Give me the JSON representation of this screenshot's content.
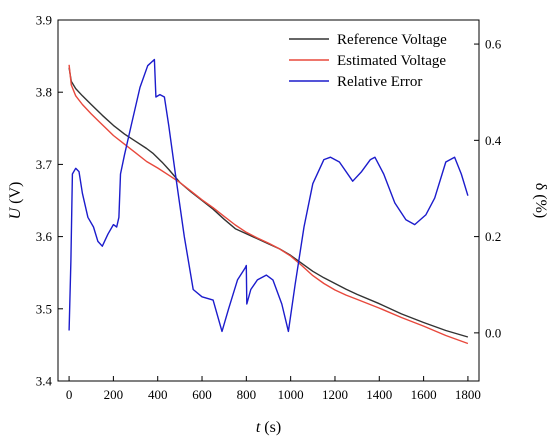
{
  "chart_data": {
    "type": "line",
    "xlabel_main": "t",
    "xlabel_unit": " (s)",
    "ylabel_left_main": "U",
    "ylabel_left_unit": " (V)",
    "ylabel_right": "δ (%)",
    "xlim": [
      -50,
      1850
    ],
    "ylim_left": [
      3.4,
      3.9
    ],
    "ylim_right": [
      -0.1,
      0.65
    ],
    "x_ticks": [
      0,
      200,
      400,
      600,
      800,
      1000,
      1200,
      1400,
      1600,
      1800
    ],
    "y_left_ticks": [
      3.4,
      3.5,
      3.6,
      3.7,
      3.8,
      3.9
    ],
    "y_left_tick_labels": [
      "3.4",
      "3.5",
      "3.6",
      "3.7",
      "3.8",
      "3.9"
    ],
    "y_right_ticks": [
      0.0,
      0.2,
      0.4,
      0.6
    ],
    "y_right_tick_labels": [
      "0.0",
      "0.2",
      "0.4",
      "0.6"
    ],
    "legend_position": "top-right",
    "grid": false,
    "series": [
      {
        "name": "Reference Voltage",
        "axis": "left",
        "color": "#333333",
        "points": [
          [
            0,
            3.834
          ],
          [
            10,
            3.815
          ],
          [
            30,
            3.805
          ],
          [
            60,
            3.795
          ],
          [
            100,
            3.783
          ],
          [
            150,
            3.768
          ],
          [
            200,
            3.754
          ],
          [
            250,
            3.742
          ],
          [
            300,
            3.732
          ],
          [
            350,
            3.722
          ],
          [
            380,
            3.715
          ],
          [
            420,
            3.703
          ],
          [
            450,
            3.693
          ],
          [
            500,
            3.675
          ],
          [
            550,
            3.662
          ],
          [
            600,
            3.65
          ],
          [
            650,
            3.638
          ],
          [
            700,
            3.624
          ],
          [
            750,
            3.611
          ],
          [
            800,
            3.604
          ],
          [
            850,
            3.597
          ],
          [
            900,
            3.59
          ],
          [
            950,
            3.583
          ],
          [
            1000,
            3.574
          ],
          [
            1050,
            3.563
          ],
          [
            1100,
            3.552
          ],
          [
            1150,
            3.543
          ],
          [
            1200,
            3.535
          ],
          [
            1250,
            3.527
          ],
          [
            1300,
            3.52
          ],
          [
            1400,
            3.507
          ],
          [
            1500,
            3.493
          ],
          [
            1600,
            3.481
          ],
          [
            1700,
            3.47
          ],
          [
            1800,
            3.461
          ]
        ]
      },
      {
        "name": "Estimated Voltage",
        "axis": "left",
        "color": "#e8483c",
        "points": [
          [
            0,
            3.838
          ],
          [
            10,
            3.81
          ],
          [
            30,
            3.795
          ],
          [
            60,
            3.783
          ],
          [
            100,
            3.77
          ],
          [
            150,
            3.755
          ],
          [
            200,
            3.74
          ],
          [
            250,
            3.728
          ],
          [
            300,
            3.716
          ],
          [
            350,
            3.704
          ],
          [
            400,
            3.695
          ],
          [
            450,
            3.685
          ],
          [
            500,
            3.675
          ],
          [
            550,
            3.663
          ],
          [
            600,
            3.651
          ],
          [
            650,
            3.64
          ],
          [
            700,
            3.628
          ],
          [
            750,
            3.616
          ],
          [
            800,
            3.606
          ],
          [
            850,
            3.598
          ],
          [
            900,
            3.591
          ],
          [
            950,
            3.583
          ],
          [
            1000,
            3.573
          ],
          [
            1050,
            3.56
          ],
          [
            1100,
            3.546
          ],
          [
            1150,
            3.535
          ],
          [
            1200,
            3.526
          ],
          [
            1250,
            3.519
          ],
          [
            1300,
            3.513
          ],
          [
            1400,
            3.501
          ],
          [
            1500,
            3.488
          ],
          [
            1600,
            3.476
          ],
          [
            1700,
            3.463
          ],
          [
            1800,
            3.452
          ]
        ]
      },
      {
        "name": "Relative Error",
        "axis": "right",
        "color": "#1c1ccc",
        "points": [
          [
            0,
            0.005
          ],
          [
            8,
            0.15
          ],
          [
            15,
            0.33
          ],
          [
            30,
            0.342
          ],
          [
            45,
            0.335
          ],
          [
            60,
            0.29
          ],
          [
            85,
            0.24
          ],
          [
            110,
            0.22
          ],
          [
            130,
            0.19
          ],
          [
            150,
            0.18
          ],
          [
            175,
            0.205
          ],
          [
            200,
            0.225
          ],
          [
            215,
            0.22
          ],
          [
            225,
            0.24
          ],
          [
            232,
            0.33
          ],
          [
            250,
            0.37
          ],
          [
            280,
            0.43
          ],
          [
            320,
            0.51
          ],
          [
            355,
            0.555
          ],
          [
            385,
            0.568
          ],
          [
            392,
            0.49
          ],
          [
            410,
            0.495
          ],
          [
            430,
            0.49
          ],
          [
            450,
            0.43
          ],
          [
            480,
            0.33
          ],
          [
            520,
            0.2
          ],
          [
            560,
            0.09
          ],
          [
            600,
            0.075
          ],
          [
            650,
            0.068
          ],
          [
            690,
            0.003
          ],
          [
            720,
            0.05
          ],
          [
            760,
            0.11
          ],
          [
            795,
            0.135
          ],
          [
            800,
            0.14
          ],
          [
            802,
            0.06
          ],
          [
            820,
            0.09
          ],
          [
            850,
            0.11
          ],
          [
            890,
            0.12
          ],
          [
            920,
            0.11
          ],
          [
            960,
            0.06
          ],
          [
            990,
            0.003
          ],
          [
            1020,
            0.1
          ],
          [
            1060,
            0.22
          ],
          [
            1100,
            0.31
          ],
          [
            1150,
            0.36
          ],
          [
            1180,
            0.365
          ],
          [
            1220,
            0.355
          ],
          [
            1280,
            0.315
          ],
          [
            1320,
            0.335
          ],
          [
            1360,
            0.36
          ],
          [
            1380,
            0.365
          ],
          [
            1420,
            0.33
          ],
          [
            1470,
            0.27
          ],
          [
            1520,
            0.235
          ],
          [
            1560,
            0.225
          ],
          [
            1610,
            0.245
          ],
          [
            1650,
            0.28
          ],
          [
            1700,
            0.355
          ],
          [
            1740,
            0.365
          ],
          [
            1770,
            0.33
          ],
          [
            1800,
            0.285
          ]
        ]
      }
    ]
  }
}
